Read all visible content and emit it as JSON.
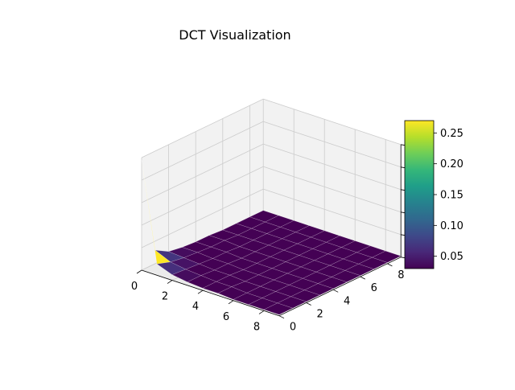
{
  "figure": {
    "title": "DCT Visualization"
  },
  "chart_data": {
    "type": "surface3d",
    "title": "DCT Visualization",
    "xlabel": "",
    "ylabel": "",
    "zlabel": "",
    "x": [
      0,
      1,
      2,
      3,
      4,
      5,
      6,
      7,
      8,
      9
    ],
    "y": [
      0,
      1,
      2,
      3,
      4,
      5,
      6,
      7,
      8,
      9
    ],
    "xlim": [
      0,
      9
    ],
    "ylim": [
      0,
      9
    ],
    "zlim": [
      0,
      1.0
    ],
    "x_ticks": [
      "0",
      "2",
      "4",
      "6",
      "8"
    ],
    "y_ticks": [
      "0",
      "2",
      "4",
      "6",
      "8"
    ],
    "z_ticks": [
      "0.0",
      "0.2",
      "0.4",
      "0.6",
      "0.8",
      "1.0"
    ],
    "z_values": [
      [
        0.98,
        0.12,
        0.05,
        0.03,
        0.02,
        0.02,
        0.01,
        0.01,
        0.01,
        0.01
      ],
      [
        0.1,
        0.06,
        0.04,
        0.03,
        0.02,
        0.02,
        0.01,
        0.01,
        0.01,
        0.01
      ],
      [
        0.05,
        0.04,
        0.03,
        0.02,
        0.02,
        0.01,
        0.01,
        0.01,
        0.01,
        0.01
      ],
      [
        0.03,
        0.03,
        0.02,
        0.02,
        0.01,
        0.01,
        0.01,
        0.01,
        0.01,
        0.01
      ],
      [
        0.02,
        0.02,
        0.02,
        0.01,
        0.01,
        0.01,
        0.01,
        0.01,
        0.01,
        0.01
      ],
      [
        0.02,
        0.02,
        0.01,
        0.01,
        0.01,
        0.01,
        0.01,
        0.01,
        0.01,
        0.01
      ],
      [
        0.01,
        0.01,
        0.01,
        0.01,
        0.01,
        0.01,
        0.01,
        0.01,
        0.01,
        0.01
      ],
      [
        0.01,
        0.01,
        0.01,
        0.01,
        0.01,
        0.01,
        0.01,
        0.01,
        0.01,
        0.01
      ],
      [
        0.01,
        0.01,
        0.01,
        0.01,
        0.01,
        0.01,
        0.01,
        0.01,
        0.01,
        0.01
      ],
      [
        0.01,
        0.01,
        0.01,
        0.01,
        0.01,
        0.01,
        0.01,
        0.01,
        0.01,
        0.01
      ]
    ],
    "grid": true,
    "colormap": "viridis",
    "colorbar": {
      "ticks": [
        "0.05",
        "0.10",
        "0.15",
        "0.20",
        "0.25"
      ],
      "tick_values": [
        0.05,
        0.1,
        0.15,
        0.2,
        0.25
      ],
      "range": [
        0.03,
        0.27
      ],
      "colors": [
        "#440154",
        "#482878",
        "#3e4989",
        "#31688e",
        "#26828e",
        "#1f9e89",
        "#35b779",
        "#6ece58",
        "#b5de2b",
        "#fde725"
      ]
    },
    "colors": {
      "pane": "#f2f2f2",
      "pane_side": "#ebebeb",
      "grid": "#cccccc",
      "axis": "#000000"
    }
  }
}
